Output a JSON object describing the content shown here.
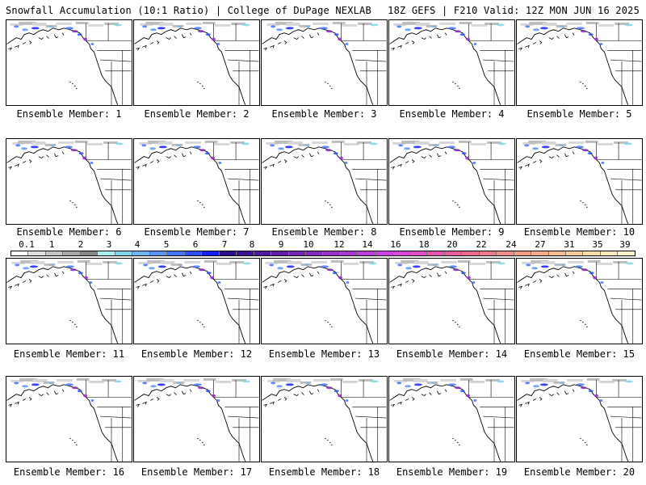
{
  "header": {
    "left": "Snowfall Accumulation (10:1 Ratio) | College of DuPage NEXLAB",
    "right": "18Z GEFS | F210 Valid: 12Z MON JUN 16 2025"
  },
  "colorbar": {
    "tick_labels": [
      "0.1",
      "1",
      "2",
      "3",
      "4",
      "5",
      "6",
      "7",
      "8",
      "9",
      "10",
      "12",
      "14",
      "16",
      "18",
      "20",
      "22",
      "24",
      "27",
      "31",
      "35",
      "39"
    ],
    "colors": [
      "#ffffff",
      "#e0e0e0",
      "#c4c4c4",
      "#a8a8a8",
      "#888888",
      "#a9eef0",
      "#7fd6e8",
      "#6cb4f0",
      "#5a94f6",
      "#4472f8",
      "#2a4ef8",
      "#1420f0",
      "#2b0c8c",
      "#3c1296",
      "#4e18a0",
      "#601eaa",
      "#7224b4",
      "#842abe",
      "#9630c8",
      "#a836d2",
      "#ba3cdc",
      "#cc42e6",
      "#d848d8",
      "#e04ec4",
      "#e654b0",
      "#ea5c9c",
      "#ec6c90",
      "#ee7c8a",
      "#f08c86",
      "#f29c86",
      "#f4ac8a",
      "#f6bc90",
      "#f8cc9a",
      "#fadca8",
      "#fce8b8",
      "#fef2c8"
    ]
  },
  "panels": [
    {
      "label": "Ensemble Member: 1"
    },
    {
      "label": "Ensemble Member: 2"
    },
    {
      "label": "Ensemble Member: 3"
    },
    {
      "label": "Ensemble Member: 4"
    },
    {
      "label": "Ensemble Member: 5"
    },
    {
      "label": "Ensemble Member: 6"
    },
    {
      "label": "Ensemble Member: 7"
    },
    {
      "label": "Ensemble Member: 8"
    },
    {
      "label": "Ensemble Member: 9"
    },
    {
      "label": "Ensemble Member: 10"
    },
    {
      "label": "Ensemble Member: 11"
    },
    {
      "label": "Ensemble Member: 12"
    },
    {
      "label": "Ensemble Member: 13"
    },
    {
      "label": "Ensemble Member: 14"
    },
    {
      "label": "Ensemble Member: 15"
    },
    {
      "label": "Ensemble Member: 16"
    },
    {
      "label": "Ensemble Member: 17"
    },
    {
      "label": "Ensemble Member: 18"
    },
    {
      "label": "Ensemble Member: 19"
    },
    {
      "label": "Ensemble Member: 20"
    }
  ]
}
